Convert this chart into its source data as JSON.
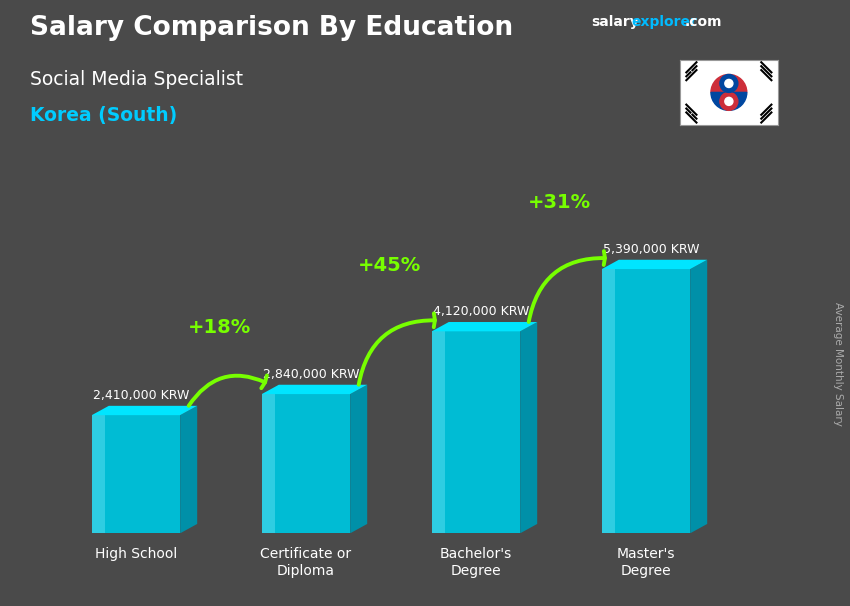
{
  "title": "Salary Comparison By Education",
  "subtitle": "Social Media Specialist",
  "country": "Korea (South)",
  "watermark_salary": "salary",
  "watermark_explorer": "explorer",
  "watermark_dot_com": ".com",
  "ylabel": "Average Monthly Salary",
  "categories": [
    "High School",
    "Certificate or\nDiploma",
    "Bachelor's\nDegree",
    "Master's\nDegree"
  ],
  "values": [
    2410000,
    2840000,
    4120000,
    5390000
  ],
  "value_labels": [
    "2,410,000 KRW",
    "2,840,000 KRW",
    "4,120,000 KRW",
    "5,390,000 KRW"
  ],
  "pct_labels": [
    "+18%",
    "+45%",
    "+31%"
  ],
  "bar_face_color": "#00bcd4",
  "bar_left_highlight": "#4dd9ec",
  "bar_top_color": "#00e5ff",
  "bar_side_color": "#0090a8",
  "background_color": "#4a4a4a",
  "title_color": "#ffffff",
  "subtitle_color": "#ffffff",
  "country_color": "#00ccff",
  "value_label_color": "#ffffff",
  "pct_color": "#77ff00",
  "arrow_color": "#77ff00",
  "watermark_salary_color": "#ffffff",
  "watermark_explorer_color": "#00bbff",
  "watermark_com_color": "#ffffff",
  "side_text_color": "#aaaaaa",
  "ylim": [
    0,
    6800000
  ]
}
